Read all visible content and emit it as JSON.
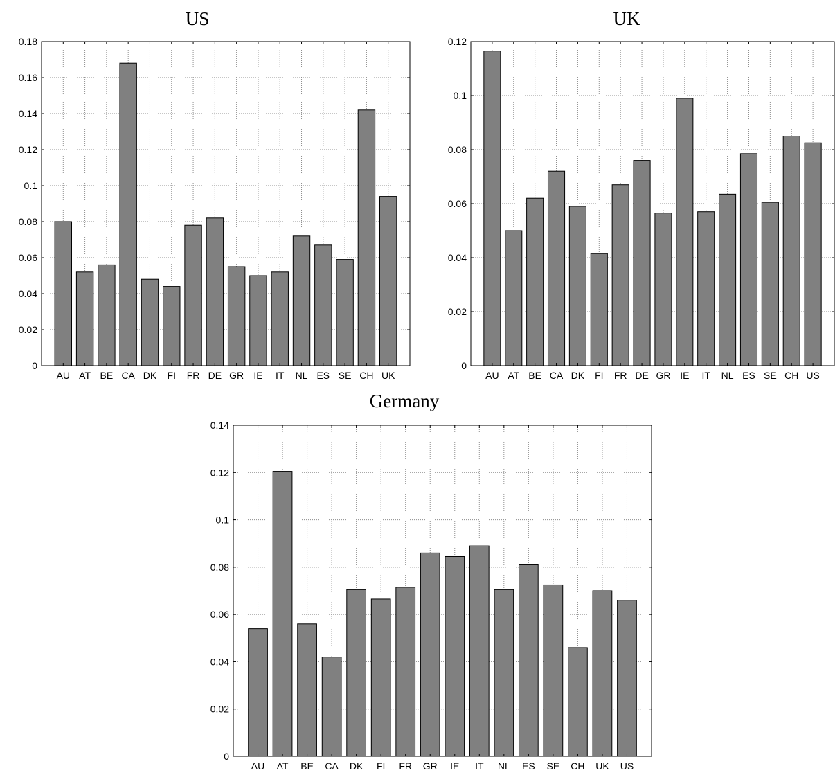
{
  "chart_data": [
    {
      "type": "bar",
      "title": "US",
      "xlabel": "",
      "ylabel": "",
      "categories": [
        "AU",
        "AT",
        "BE",
        "CA",
        "DK",
        "FI",
        "FR",
        "DE",
        "GR",
        "IE",
        "IT",
        "NL",
        "ES",
        "SE",
        "CH",
        "UK"
      ],
      "values": [
        0.08,
        0.052,
        0.056,
        0.168,
        0.048,
        0.044,
        0.078,
        0.082,
        0.055,
        0.05,
        0.052,
        0.072,
        0.067,
        0.059,
        0.142,
        0.094
      ],
      "ylim": [
        0,
        0.18
      ],
      "yticks": [
        0,
        0.02,
        0.04,
        0.06,
        0.08,
        0.1,
        0.12,
        0.14,
        0.16,
        0.18
      ],
      "ytick_labels": [
        "0",
        "0.02",
        "0.04",
        "0.06",
        "0.08",
        "0.1",
        "0.12",
        "0.14",
        "0.16",
        "0.18"
      ],
      "grid": true,
      "bar_color": "#808080"
    },
    {
      "type": "bar",
      "title": "UK",
      "xlabel": "",
      "ylabel": "",
      "categories": [
        "AU",
        "AT",
        "BE",
        "CA",
        "DK",
        "FI",
        "FR",
        "DE",
        "GR",
        "IE",
        "IT",
        "NL",
        "ES",
        "SE",
        "CH",
        "US"
      ],
      "values": [
        0.1165,
        0.05,
        0.062,
        0.072,
        0.059,
        0.0415,
        0.067,
        0.076,
        0.0565,
        0.099,
        0.057,
        0.0635,
        0.0785,
        0.0605,
        0.085,
        0.0825
      ],
      "ylim": [
        0,
        0.12
      ],
      "yticks": [
        0,
        0.02,
        0.04,
        0.06,
        0.08,
        0.1,
        0.12
      ],
      "ytick_labels": [
        "0",
        "0.02",
        "0.04",
        "0.06",
        "0.08",
        "0.1",
        "0.12"
      ],
      "grid": true,
      "bar_color": "#808080"
    },
    {
      "type": "bar",
      "title": "Germany",
      "xlabel": "",
      "ylabel": "",
      "categories": [
        "AU",
        "AT",
        "BE",
        "CA",
        "DK",
        "FI",
        "FR",
        "GR",
        "IE",
        "IT",
        "NL",
        "ES",
        "SE",
        "CH",
        "UK",
        "US"
      ],
      "values": [
        0.054,
        0.1205,
        0.056,
        0.042,
        0.0705,
        0.0665,
        0.0715,
        0.086,
        0.0845,
        0.089,
        0.0705,
        0.081,
        0.0725,
        0.046,
        0.07,
        0.066
      ],
      "ylim": [
        0,
        0.14
      ],
      "yticks": [
        0,
        0.02,
        0.04,
        0.06,
        0.08,
        0.1,
        0.12,
        0.14
      ],
      "ytick_labels": [
        "0",
        "0.02",
        "0.04",
        "0.06",
        "0.08",
        "0.1",
        "0.12",
        "0.14"
      ],
      "grid": true,
      "bar_color": "#808080"
    }
  ]
}
